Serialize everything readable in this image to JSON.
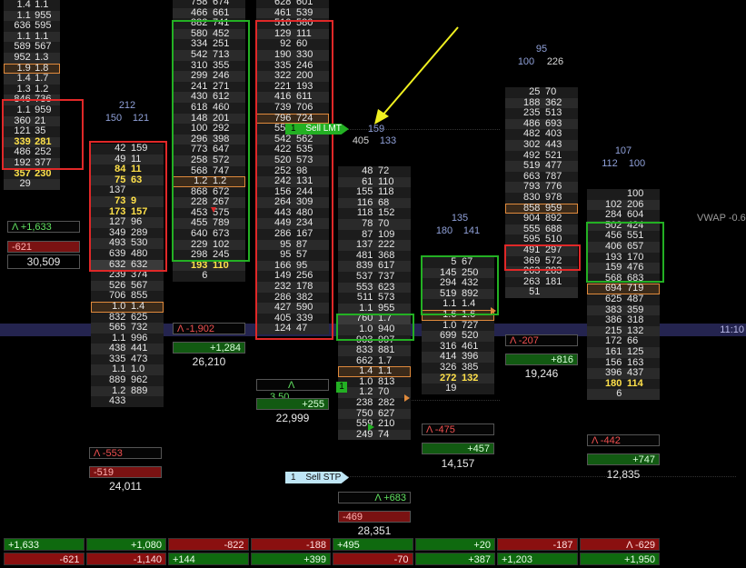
{
  "colors": {
    "ask_box": "#e02828",
    "bid_box": "#23b023",
    "order_highlight": "#e08a3c",
    "arrow": "#f0f020",
    "timeline": "#2a2a5a"
  },
  "col1": {
    "rows": [
      [
        "1.4",
        "1.1"
      ],
      [
        "1.1",
        "955"
      ],
      [
        "636",
        "595"
      ],
      [
        "1.1",
        "1.1"
      ],
      [
        "589",
        "567"
      ],
      [
        "952",
        "1.3"
      ],
      [
        "1.9",
        "1.8"
      ],
      [
        "1.4",
        "1.7"
      ],
      [
        "1.3",
        "1.2"
      ],
      [
        "846",
        "736"
      ],
      [
        "1.1",
        "959"
      ],
      [
        "360",
        "21"
      ],
      [
        "121",
        "35"
      ],
      [
        "339",
        "281"
      ],
      [
        "486",
        "252"
      ],
      [
        "192",
        "377"
      ],
      [
        "357",
        "230"
      ],
      [
        "29",
        ""
      ]
    ],
    "delta": "Λ +1,633",
    "net": "-621",
    "volume": "30,509"
  },
  "col2": {
    "hdr1": "212",
    "hdr2a": "150",
    "hdr2b": "121",
    "rows": [
      [
        "42",
        "159"
      ],
      [
        "49",
        "11"
      ],
      [
        "84",
        "11"
      ],
      [
        "75",
        "63"
      ],
      [
        "137",
        ""
      ],
      [
        "73",
        "9"
      ],
      [
        "173",
        "157"
      ],
      [
        "127",
        "96"
      ],
      [
        "349",
        "289"
      ],
      [
        "493",
        "530"
      ],
      [
        "639",
        "480"
      ],
      [
        "632",
        "632"
      ],
      [
        "239",
        "374"
      ],
      [
        "526",
        "567"
      ],
      [
        "706",
        "855"
      ],
      [
        "1.0",
        "1.4"
      ],
      [
        "832",
        "625"
      ],
      [
        "565",
        "732"
      ],
      [
        "1.1",
        "996"
      ],
      [
        "438",
        "441"
      ],
      [
        "335",
        "473"
      ],
      [
        "1.1",
        "1.0"
      ],
      [
        "889",
        "962"
      ],
      [
        "1.2",
        "889"
      ],
      [
        "433",
        ""
      ]
    ],
    "delta": "Λ -553",
    "net": "-519",
    "volume": "24,011"
  },
  "col3": {
    "rows": [
      [
        "758",
        "674"
      ],
      [
        "466",
        "661"
      ],
      [
        "882",
        "741"
      ],
      [
        "580",
        "452"
      ],
      [
        "334",
        "251"
      ],
      [
        "542",
        "713"
      ],
      [
        "310",
        "355"
      ],
      [
        "299",
        "246"
      ],
      [
        "241",
        "271"
      ],
      [
        "430",
        "612"
      ],
      [
        "618",
        "460"
      ],
      [
        "148",
        "201"
      ],
      [
        "100",
        "292"
      ],
      [
        "296",
        "398"
      ],
      [
        "773",
        "647"
      ],
      [
        "258",
        "572"
      ],
      [
        "568",
        "747"
      ],
      [
        "1.2",
        "1.2"
      ],
      [
        "868",
        "672"
      ],
      [
        "228",
        "267"
      ],
      [
        "453",
        "575"
      ],
      [
        "455",
        "789"
      ],
      [
        "640",
        "673"
      ],
      [
        "229",
        "102"
      ],
      [
        "298",
        "245"
      ],
      [
        "193",
        "110"
      ],
      [
        "6",
        ""
      ]
    ],
    "delta": "Λ -1,902",
    "net": "+1,284",
    "volume": "26,210"
  },
  "col4": {
    "rows": [
      [
        "628",
        "601"
      ],
      [
        "461",
        "539"
      ],
      [
        "510",
        "580"
      ],
      [
        "129",
        "111"
      ],
      [
        "92",
        "60"
      ],
      [
        "190",
        "330"
      ],
      [
        "335",
        "246"
      ],
      [
        "322",
        "200"
      ],
      [
        "221",
        "193"
      ],
      [
        "416",
        "611"
      ],
      [
        "739",
        "706"
      ],
      [
        "796",
        "724"
      ],
      [
        "551",
        "620"
      ],
      [
        "542",
        "562"
      ],
      [
        "422",
        "535"
      ],
      [
        "520",
        "573"
      ],
      [
        "252",
        "98"
      ],
      [
        "242",
        "131"
      ],
      [
        "156",
        "244"
      ],
      [
        "264",
        "309"
      ],
      [
        "443",
        "480"
      ],
      [
        "449",
        "234"
      ],
      [
        "286",
        "167"
      ],
      [
        "95",
        "87"
      ],
      [
        "95",
        "57"
      ],
      [
        "166",
        "95"
      ],
      [
        "149",
        "256"
      ],
      [
        "232",
        "178"
      ],
      [
        "286",
        "382"
      ],
      [
        "427",
        "590"
      ],
      [
        "405",
        "339"
      ],
      [
        "124",
        "47"
      ]
    ],
    "delta": "Λ",
    "delta_val": "3.50",
    "net": "+255",
    "volume": "22,999"
  },
  "col5": {
    "hdr1": "159",
    "hdr2a": "405",
    "hdr2b": "133",
    "rows": [
      [
        "48",
        "72"
      ],
      [
        "61",
        "110"
      ],
      [
        "155",
        "118"
      ],
      [
        "116",
        "68"
      ],
      [
        "118",
        "152"
      ],
      [
        "78",
        "70"
      ],
      [
        "87",
        "109"
      ],
      [
        "137",
        "222"
      ],
      [
        "481",
        "368"
      ],
      [
        "839",
        "617"
      ],
      [
        "537",
        "737"
      ],
      [
        "553",
        "623"
      ],
      [
        "511",
        "573"
      ],
      [
        "1.1",
        "955"
      ],
      [
        "760",
        "1.7"
      ],
      [
        "1.0",
        "940"
      ],
      [
        "903",
        "997"
      ],
      [
        "833",
        "881"
      ],
      [
        "662",
        "1.7"
      ],
      [
        "1.4",
        "1.1"
      ],
      [
        "1.0",
        "813"
      ],
      [
        "1.2",
        "70"
      ],
      [
        "238",
        "282"
      ],
      [
        "750",
        "627"
      ],
      [
        "559",
        "210"
      ],
      [
        "249",
        "74"
      ]
    ],
    "delta": "Λ +683",
    "net": "-469",
    "volume": "28,351"
  },
  "col6": {
    "hdr1": "135",
    "hdr2a": "180",
    "hdr2b": "141",
    "rows": [
      [
        "5",
        "67"
      ],
      [
        "145",
        "250"
      ],
      [
        "294",
        "432"
      ],
      [
        "519",
        "892"
      ],
      [
        "1.1",
        "1.4"
      ],
      [
        "1.6",
        "1.6"
      ],
      [
        "1.0",
        "727"
      ],
      [
        "699",
        "520"
      ],
      [
        "316",
        "461"
      ],
      [
        "414",
        "396"
      ],
      [
        "326",
        "385"
      ],
      [
        "272",
        "132"
      ],
      [
        "19",
        ""
      ]
    ],
    "delta": "Λ -475",
    "net": "+457",
    "volume": "14,157"
  },
  "col7": {
    "hdr1": "95",
    "hdr2a": "100",
    "hdr2b": "226",
    "rows": [
      [
        "25",
        "70"
      ],
      [
        "188",
        "362"
      ],
      [
        "235",
        "513"
      ],
      [
        "486",
        "693"
      ],
      [
        "482",
        "403"
      ],
      [
        "302",
        "443"
      ],
      [
        "492",
        "521"
      ],
      [
        "519",
        "477"
      ],
      [
        "663",
        "787"
      ],
      [
        "793",
        "776"
      ],
      [
        "830",
        "978"
      ],
      [
        "858",
        "959"
      ],
      [
        "904",
        "892"
      ],
      [
        "555",
        "688"
      ],
      [
        "595",
        "510"
      ],
      [
        "491",
        "297"
      ],
      [
        "369",
        "572"
      ],
      [
        "263",
        "283"
      ],
      [
        "263",
        "181"
      ],
      [
        "51",
        ""
      ]
    ],
    "delta": "Λ -207",
    "net": "+816",
    "volume": "19,246"
  },
  "col8": {
    "hdr1": "107",
    "hdr2a": "112",
    "hdr2b": "100",
    "rows": [
      [
        "",
        "100"
      ],
      [
        "102",
        "206"
      ],
      [
        "284",
        "604"
      ],
      [
        "502",
        "424"
      ],
      [
        "456",
        "551"
      ],
      [
        "406",
        "657"
      ],
      [
        "193",
        "170"
      ],
      [
        "159",
        "476"
      ],
      [
        "568",
        "683"
      ],
      [
        "694",
        "719"
      ],
      [
        "625",
        "487"
      ],
      [
        "383",
        "359"
      ],
      [
        "386",
        "318"
      ],
      [
        "215",
        "132"
      ],
      [
        "172",
        "66"
      ],
      [
        "161",
        "125"
      ],
      [
        "156",
        "163"
      ],
      [
        "396",
        "437"
      ],
      [
        "180",
        "114"
      ],
      [
        "6",
        ""
      ]
    ],
    "delta": "Λ -442",
    "net": "+747",
    "volume": "12,835"
  },
  "orders": {
    "sell_lmt_qty": "1",
    "sell_lmt_label": "Sell LMT",
    "sell_stp_qty": "1",
    "sell_stp_label": "Sell STP",
    "marker_qty": "1"
  },
  "vwap_label": "VWAP -0.6",
  "time_label": "11:10",
  "bottom": {
    "row1": [
      "+1,633",
      "+1,080",
      "-822",
      "-188",
      "+495",
      "+20",
      "-187",
      "Λ -629"
    ],
    "row2": [
      "-621",
      "-1,140",
      "+144",
      "+399",
      "-70",
      "+387",
      "+1,203",
      "+1,950"
    ]
  }
}
